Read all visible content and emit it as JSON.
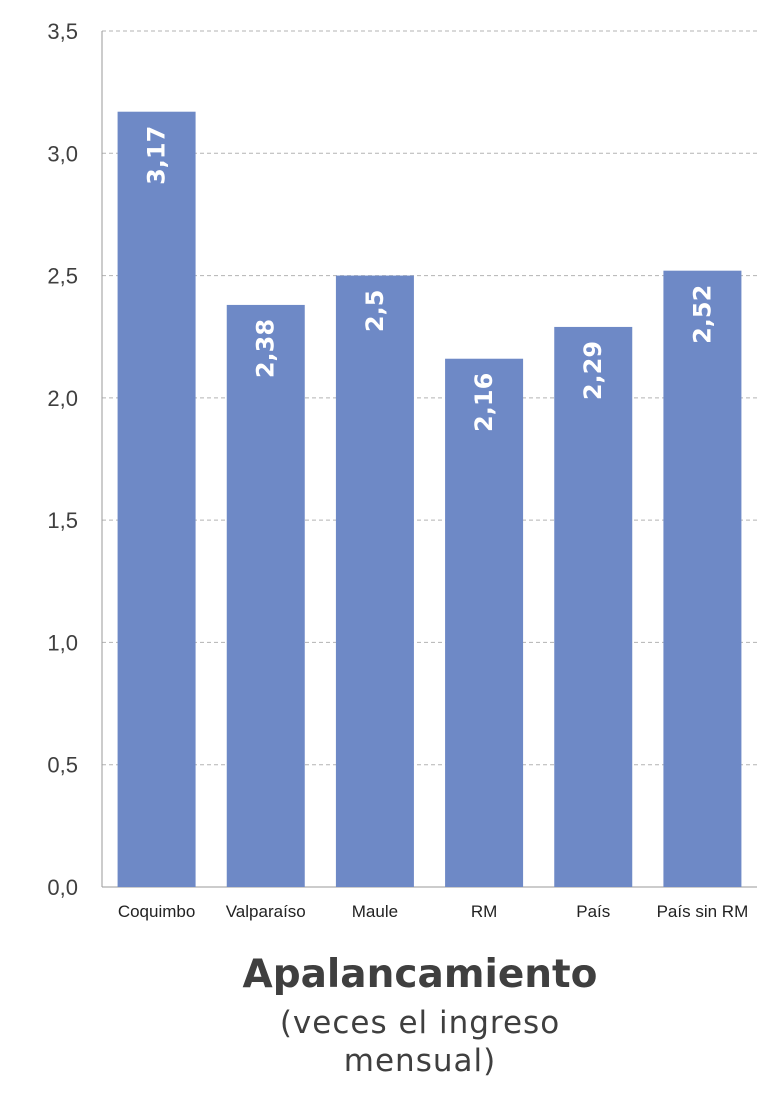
{
  "chart_data": {
    "type": "bar",
    "title": "Apalancamiento",
    "subtitle": "(veces el ingreso mensual)",
    "categories": [
      "Coquimbo",
      "Valparaíso",
      "Maule",
      "RM",
      "País",
      "País sin RM"
    ],
    "values": [
      3.17,
      2.38,
      2.5,
      2.16,
      2.29,
      2.52
    ],
    "value_labels": [
      "3,17",
      "2,38",
      "2,5",
      "2,16",
      "2,29",
      "2,52"
    ],
    "ylim": [
      0,
      3.5
    ],
    "yticks": [
      0,
      0.5,
      1.0,
      1.5,
      2.0,
      2.5,
      3.0,
      3.5
    ],
    "ytick_labels": [
      "0,0",
      "0,5",
      "1,0",
      "1,5",
      "2,0",
      "2,5",
      "3,0",
      "3,5"
    ],
    "xlabel": "",
    "ylabel": "",
    "grid": true,
    "legend": "none",
    "bar_color": "#6e89c6",
    "label_color": "#ffffff"
  }
}
